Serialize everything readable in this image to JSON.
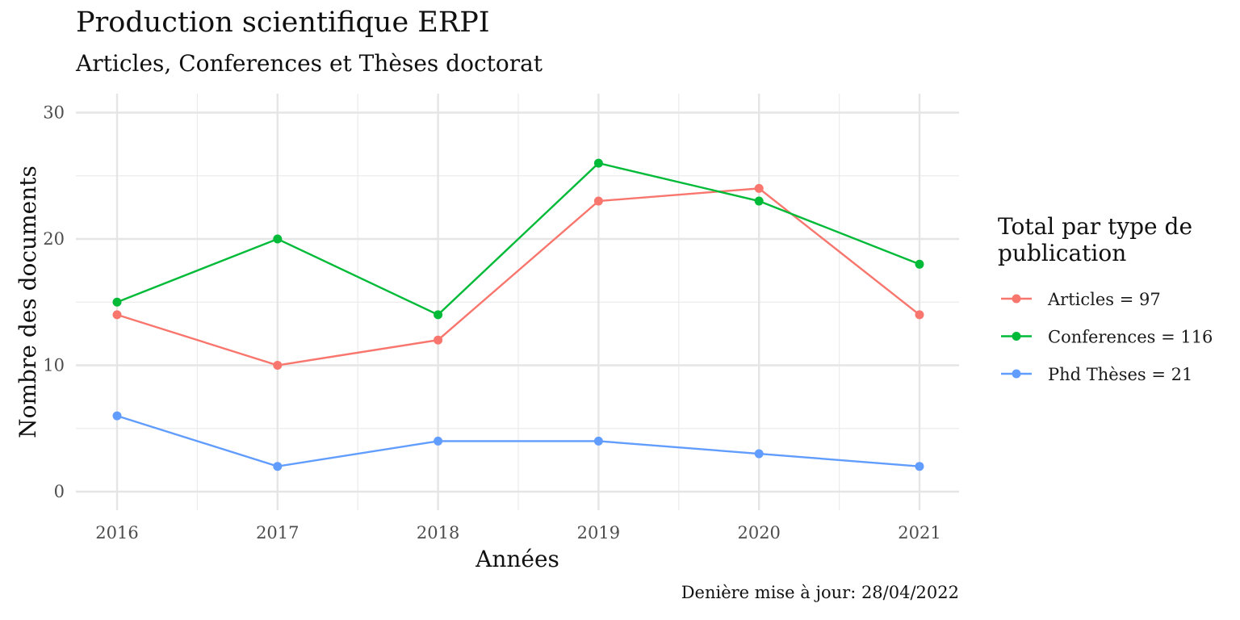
{
  "chart_data": {
    "type": "line",
    "title": "Production scientifique ERPI",
    "subtitle": "Articles, Conferences  et Thèses doctorat",
    "xlabel": "Années",
    "ylabel": "Nombre des documents",
    "caption": "Denière mise à jour: 28/04/2022",
    "legend_title": "Total par type de publication",
    "legend_position": "right",
    "grid": true,
    "x": [
      2016,
      2017,
      2018,
      2019,
      2020,
      2021
    ],
    "x_ticks": [
      "2016",
      "2017",
      "2018",
      "2019",
      "2020",
      "2021"
    ],
    "y_ticks": [
      "0",
      "10",
      "20",
      "30"
    ],
    "ylim": [
      0,
      30
    ],
    "series": [
      {
        "name": "Articles = 97",
        "color": "#F8766D",
        "values": [
          14,
          10,
          12,
          23,
          24,
          14
        ]
      },
      {
        "name": "Conferences = 116",
        "color": "#00BA38",
        "values": [
          15,
          20,
          14,
          26,
          23,
          18
        ]
      },
      {
        "name": "Phd Thèses = 21",
        "color": "#619CFF",
        "values": [
          6,
          2,
          4,
          4,
          3,
          2
        ]
      }
    ]
  }
}
